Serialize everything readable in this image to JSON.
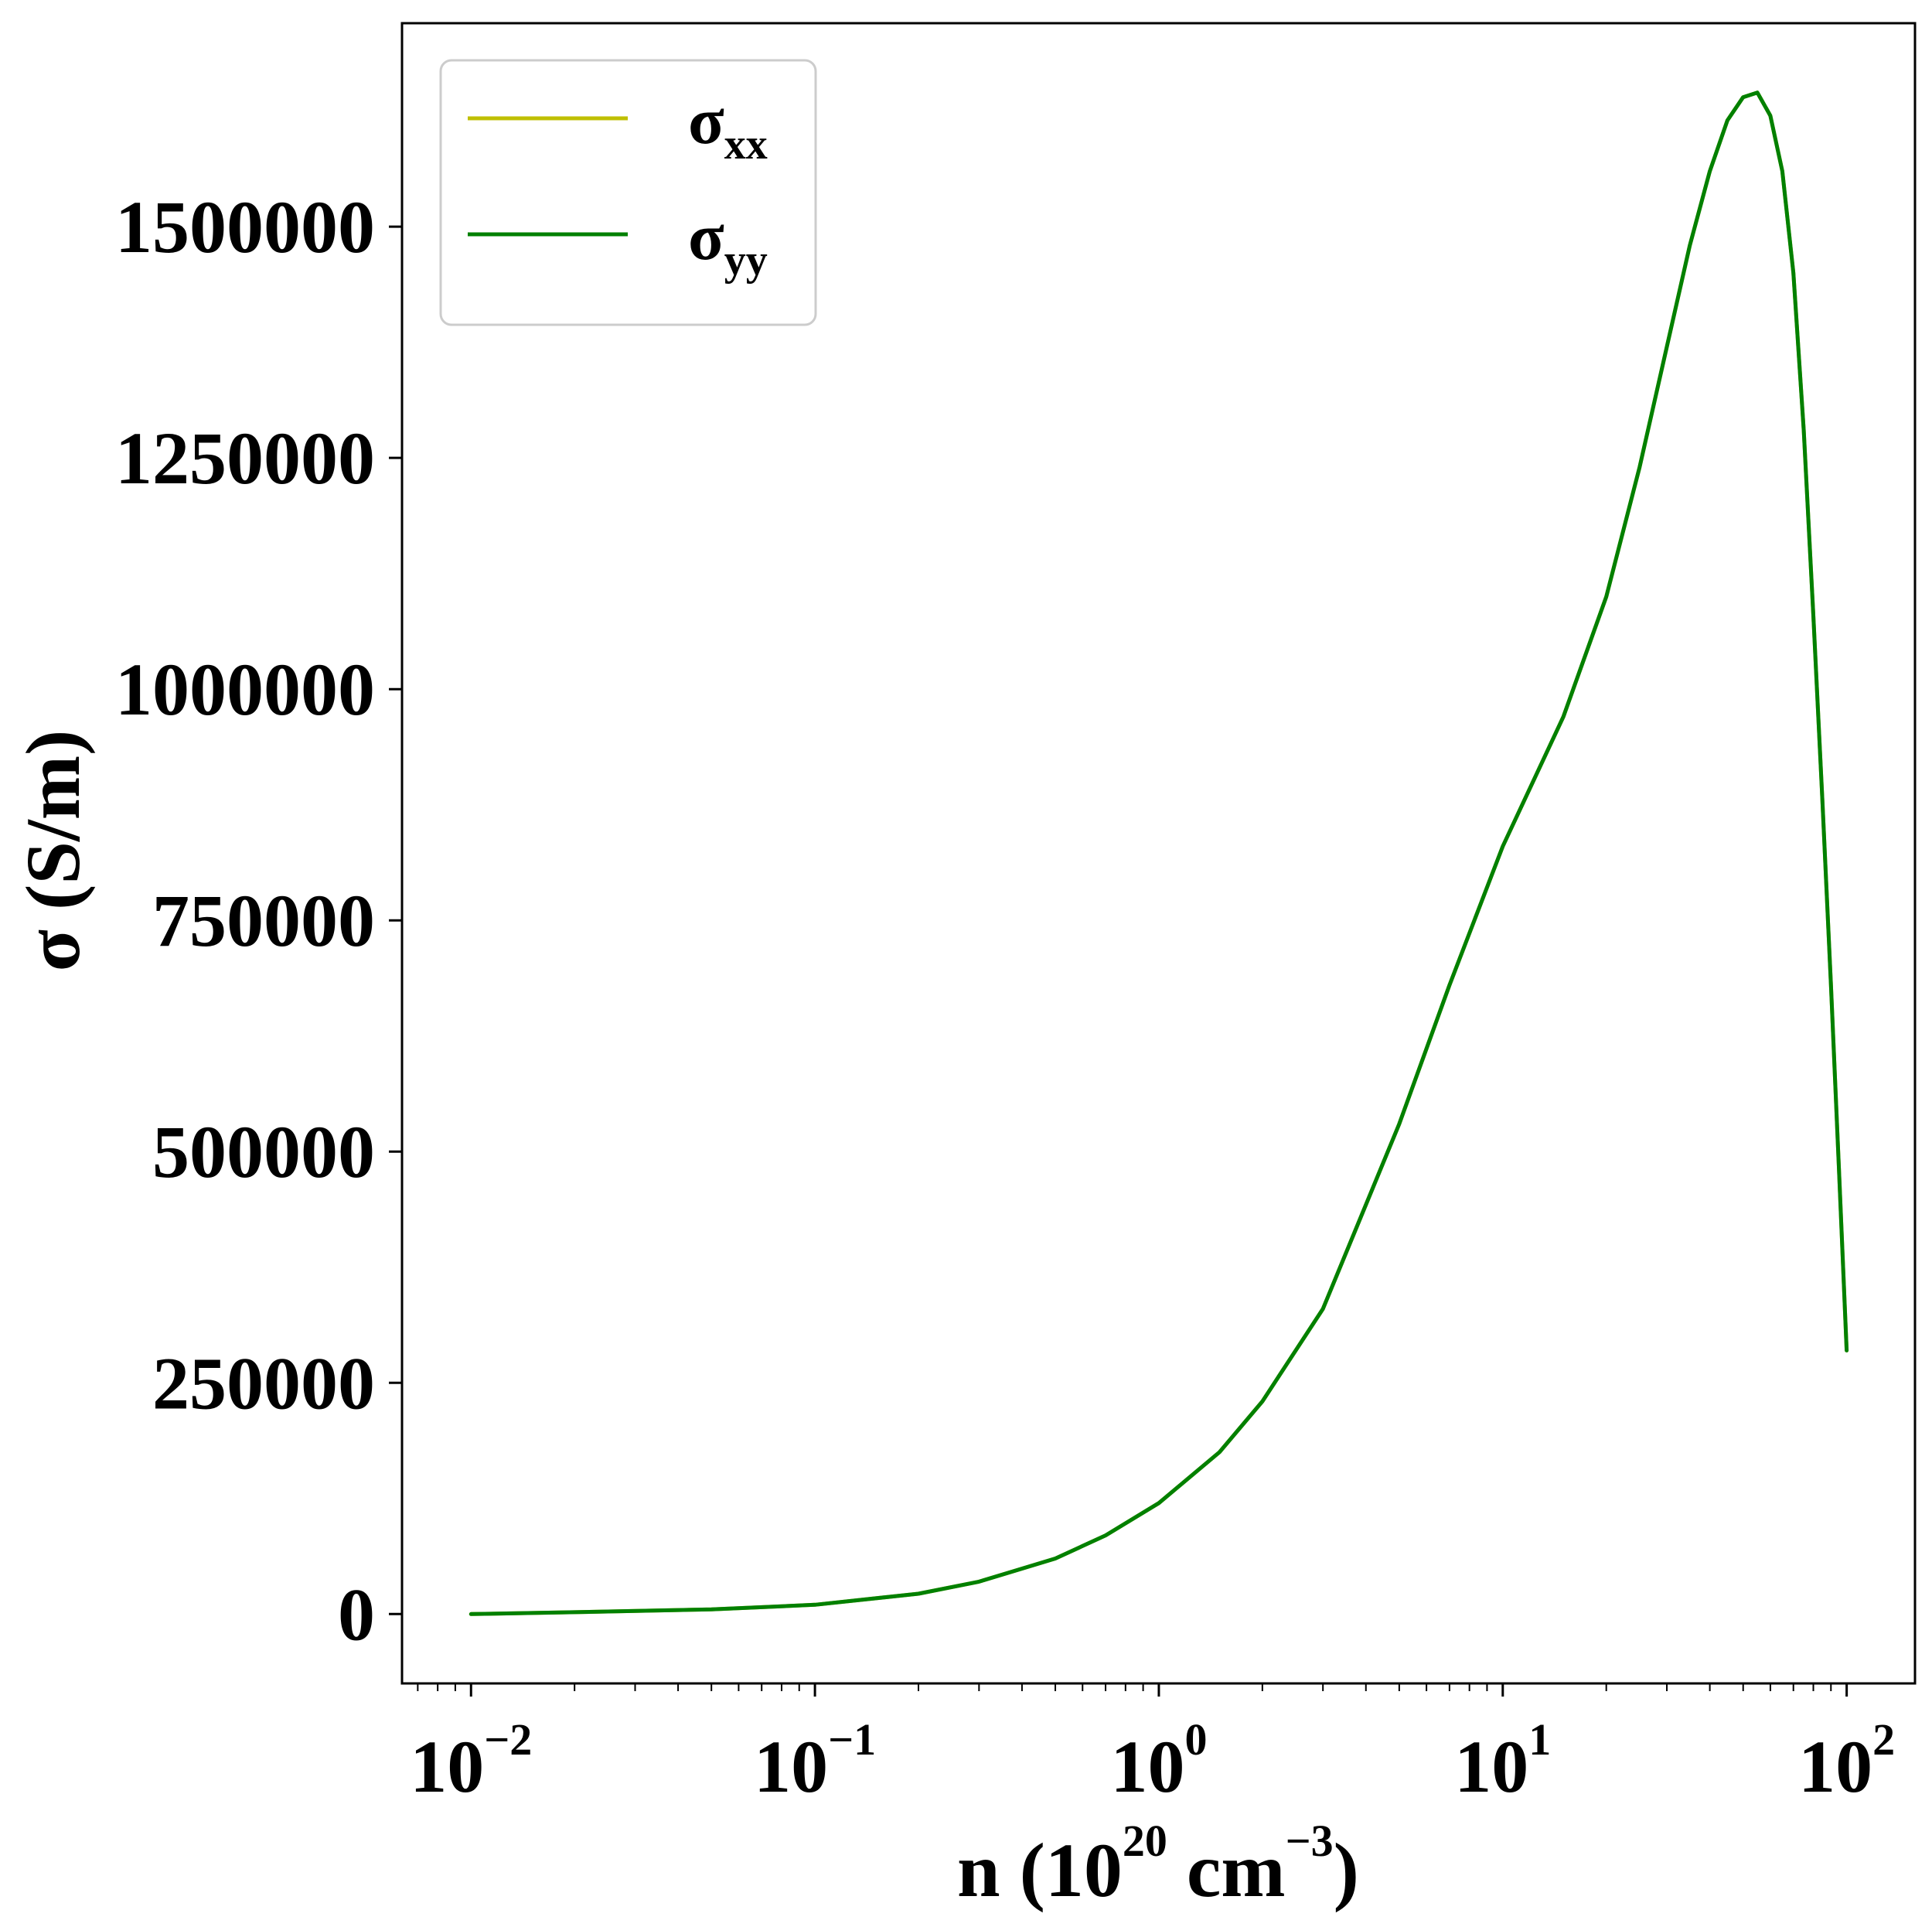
{
  "chart_data": {
    "type": "line",
    "xscale": "log",
    "xlim": [
      0.0063,
      158
    ],
    "ylim": [
      -75000,
      1720000
    ],
    "grid": false,
    "legend_position": "upper-left",
    "xlabel": {
      "base": "n (10",
      "exp": "20",
      "mid": " cm",
      "exp2": "−3",
      "end": ")"
    },
    "ylabel": "σ (S/m)",
    "x_ticks": [
      {
        "value": 0.01,
        "base": "10",
        "exp": "−2"
      },
      {
        "value": 0.1,
        "base": "10",
        "exp": "−1"
      },
      {
        "value": 1,
        "base": "10",
        "exp": "0"
      },
      {
        "value": 10,
        "base": "10",
        "exp": "1"
      },
      {
        "value": 100,
        "base": "10",
        "exp": "2"
      }
    ],
    "y_ticks": [
      {
        "value": 0,
        "label": "0"
      },
      {
        "value": 250000,
        "label": "250000"
      },
      {
        "value": 500000,
        "label": "500000"
      },
      {
        "value": 750000,
        "label": "750000"
      },
      {
        "value": 1000000,
        "label": "1000000"
      },
      {
        "value": 1250000,
        "label": "1250000"
      },
      {
        "value": 1500000,
        "label": "1500000"
      }
    ],
    "series": [
      {
        "name": {
          "base": "σ",
          "sub": "xx"
        },
        "color": "#bfbf00",
        "x": [
          0.01,
          0.02,
          0.05,
          0.1,
          0.2,
          0.3,
          0.5,
          0.7,
          1.0,
          1.5,
          2.0,
          3.0,
          5.0,
          7.0,
          10,
          15,
          20,
          25,
          30,
          35,
          40,
          45,
          50,
          55,
          60,
          65,
          70,
          75,
          80,
          85,
          90,
          95,
          100
        ],
        "y": [
          0,
          2000,
          5000,
          10000,
          22000,
          35000,
          60000,
          85000,
          120000,
          175000,
          230000,
          330000,
          530000,
          680000,
          830000,
          970000,
          1100000,
          1240000,
          1370000,
          1480000,
          1560000,
          1615000,
          1640000,
          1645000,
          1620000,
          1560000,
          1450000,
          1280000,
          1080000,
          880000,
          680000,
          480000,
          285000
        ]
      },
      {
        "name": {
          "base": "σ",
          "sub": "yy"
        },
        "color": "#008000",
        "x": [
          0.01,
          0.02,
          0.05,
          0.1,
          0.2,
          0.3,
          0.5,
          0.7,
          1.0,
          1.5,
          2.0,
          3.0,
          5.0,
          7.0,
          10,
          15,
          20,
          25,
          30,
          35,
          40,
          45,
          50,
          55,
          60,
          65,
          70,
          75,
          80,
          85,
          90,
          95,
          100
        ],
        "y": [
          0,
          2000,
          5000,
          10000,
          22000,
          35000,
          60000,
          85000,
          120000,
          175000,
          230000,
          330000,
          530000,
          680000,
          830000,
          970000,
          1100000,
          1240000,
          1370000,
          1480000,
          1560000,
          1615000,
          1640000,
          1645000,
          1620000,
          1560000,
          1450000,
          1280000,
          1080000,
          880000,
          680000,
          480000,
          285000
        ]
      }
    ]
  }
}
